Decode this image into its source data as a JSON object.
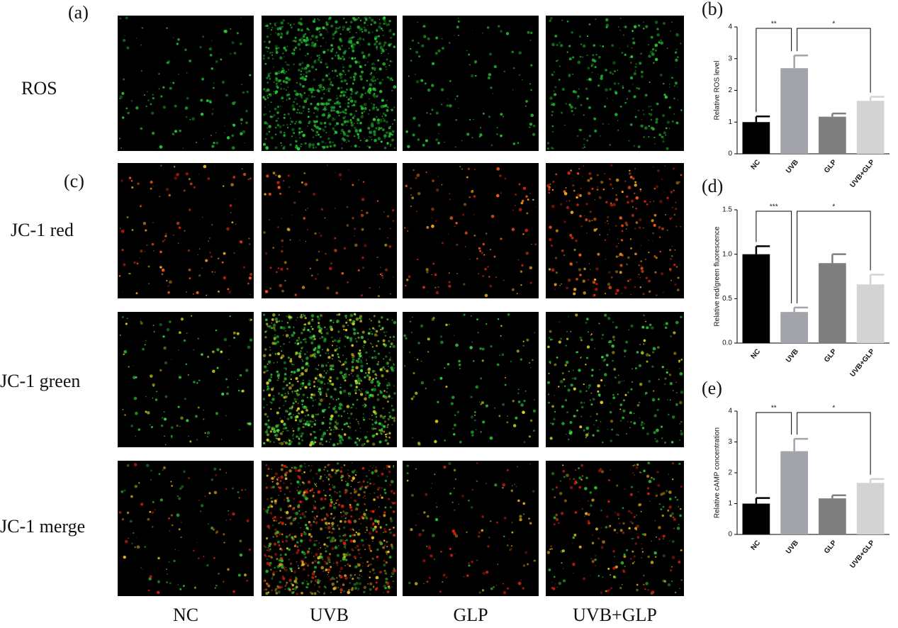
{
  "figure": {
    "panels": [
      "(a)",
      "(c)"
    ],
    "rows": [
      "ROS",
      "JC-1 red",
      "JC-1 green",
      "JC-1 merge"
    ],
    "columns": [
      "NC",
      "UVB",
      "GLP",
      "UVB+GLP"
    ]
  },
  "chart_data": [
    {
      "type": "bar",
      "panel": "(b)",
      "ylabel": "Relative  ROS level",
      "categories": [
        "NC",
        "UVB",
        "GLP",
        "UVB+GLP"
      ],
      "values": [
        1.0,
        2.7,
        1.17,
        1.67
      ],
      "errors": [
        0.18,
        0.4,
        0.1,
        0.13
      ],
      "colors": [
        "#000000",
        "#a3a3ab",
        "#7f7f7f",
        "#d3d3d3"
      ],
      "ylim": [
        0,
        4
      ],
      "yticks": [
        0,
        1,
        2,
        3,
        4
      ],
      "significance": [
        {
          "label": "**",
          "between": [
            "NC",
            "UVB"
          ]
        },
        {
          "label": "*",
          "between": [
            "UVB",
            "UVB+GLP"
          ]
        }
      ]
    },
    {
      "type": "bar",
      "panel": "(d)",
      "ylabel": "Relative red/green fluorescence",
      "categories": [
        "NC",
        "UVB",
        "GLP",
        "UVB+GLP"
      ],
      "values": [
        1.0,
        0.35,
        0.9,
        0.66
      ],
      "errors": [
        0.09,
        0.05,
        0.1,
        0.11
      ],
      "colors": [
        "#000000",
        "#a3a3ab",
        "#7f7f7f",
        "#d3d3d3"
      ],
      "ylim": [
        0,
        1.5
      ],
      "yticks": [
        {
          "value": 0,
          "label": "0.0"
        },
        0.5,
        {
          "value": 1,
          "label": "1.0"
        },
        1.5
      ],
      "significance": [
        {
          "label": "***",
          "between": [
            "NC",
            "UVB"
          ]
        },
        {
          "label": "*",
          "between": [
            "UVB",
            "UVB+GLP"
          ]
        }
      ]
    },
    {
      "type": "bar",
      "panel": "(e)",
      "ylabel": "Relative  cAMP concentration",
      "categories": [
        "NC",
        "UVB",
        "GLP",
        "UVB+GLP"
      ],
      "values": [
        1.0,
        2.7,
        1.17,
        1.67
      ],
      "errors": [
        0.18,
        0.4,
        0.1,
        0.13
      ],
      "colors": [
        "#000000",
        "#a3a3ab",
        "#7f7f7f",
        "#d3d3d3"
      ],
      "ylim": [
        0,
        4
      ],
      "yticks": [
        0,
        1,
        2,
        3,
        4
      ],
      "significance": [
        {
          "label": "**",
          "between": [
            "NC",
            "UVB"
          ]
        },
        {
          "label": "*",
          "between": [
            "UVB",
            "UVB+GLP"
          ]
        }
      ]
    }
  ]
}
